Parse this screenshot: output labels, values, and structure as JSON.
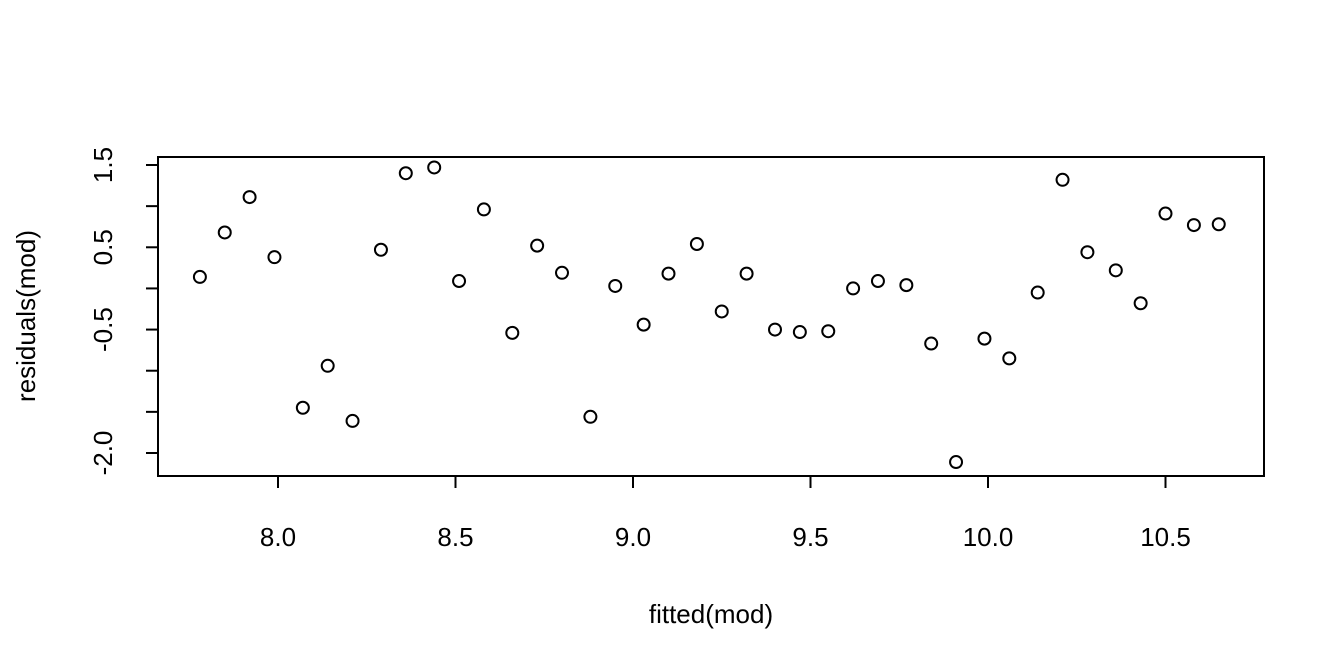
{
  "chart_data": {
    "type": "scatter",
    "xlabel": "fitted(mod)",
    "ylabel": "residuals(mod)",
    "x_ticks": [
      8.0,
      8.5,
      9.0,
      9.5,
      10.0,
      10.5
    ],
    "x_tick_labels": [
      "8.0",
      "8.5",
      "9.0",
      "9.5",
      "10.0",
      "10.5"
    ],
    "y_ticks": [
      1.5,
      1.0,
      0.5,
      0.0,
      -0.5,
      -1.0,
      -1.5,
      -2.0
    ],
    "y_tick_labels": [
      "1.5",
      "",
      "0.5",
      "",
      "-0.5",
      "",
      "",
      "-2.0"
    ],
    "xlim": [
      7.74,
      10.76
    ],
    "ylim": [
      -2.2,
      1.65
    ],
    "grid": false,
    "points": [
      {
        "x": 7.78,
        "y": 0.14
      },
      {
        "x": 7.85,
        "y": 0.68
      },
      {
        "x": 7.92,
        "y": 1.11
      },
      {
        "x": 7.99,
        "y": 0.38
      },
      {
        "x": 8.07,
        "y": -1.45
      },
      {
        "x": 8.14,
        "y": -0.94
      },
      {
        "x": 8.21,
        "y": -1.61
      },
      {
        "x": 8.29,
        "y": 0.47
      },
      {
        "x": 8.36,
        "y": 1.4
      },
      {
        "x": 8.44,
        "y": 1.47
      },
      {
        "x": 8.51,
        "y": 0.09
      },
      {
        "x": 8.58,
        "y": 0.96
      },
      {
        "x": 8.66,
        "y": -0.54
      },
      {
        "x": 8.73,
        "y": 0.52
      },
      {
        "x": 8.8,
        "y": 0.19
      },
      {
        "x": 8.88,
        "y": -1.56
      },
      {
        "x": 8.95,
        "y": 0.03
      },
      {
        "x": 9.03,
        "y": -0.44
      },
      {
        "x": 9.1,
        "y": 0.18
      },
      {
        "x": 9.18,
        "y": 0.54
      },
      {
        "x": 9.25,
        "y": -0.28
      },
      {
        "x": 9.32,
        "y": 0.18
      },
      {
        "x": 9.4,
        "y": -0.5
      },
      {
        "x": 9.47,
        "y": -0.53
      },
      {
        "x": 9.55,
        "y": -0.52
      },
      {
        "x": 9.62,
        "y": 0.0
      },
      {
        "x": 9.69,
        "y": 0.09
      },
      {
        "x": 9.77,
        "y": 0.04
      },
      {
        "x": 9.84,
        "y": -0.67
      },
      {
        "x": 9.91,
        "y": -2.11
      },
      {
        "x": 9.99,
        "y": -0.61
      },
      {
        "x": 10.06,
        "y": -0.85
      },
      {
        "x": 10.14,
        "y": -0.05
      },
      {
        "x": 10.21,
        "y": 1.32
      },
      {
        "x": 10.28,
        "y": 0.44
      },
      {
        "x": 10.36,
        "y": 0.22
      },
      {
        "x": 10.43,
        "y": -0.18
      },
      {
        "x": 10.5,
        "y": 0.91
      },
      {
        "x": 10.58,
        "y": 0.77
      },
      {
        "x": 10.65,
        "y": 0.78
      }
    ]
  }
}
